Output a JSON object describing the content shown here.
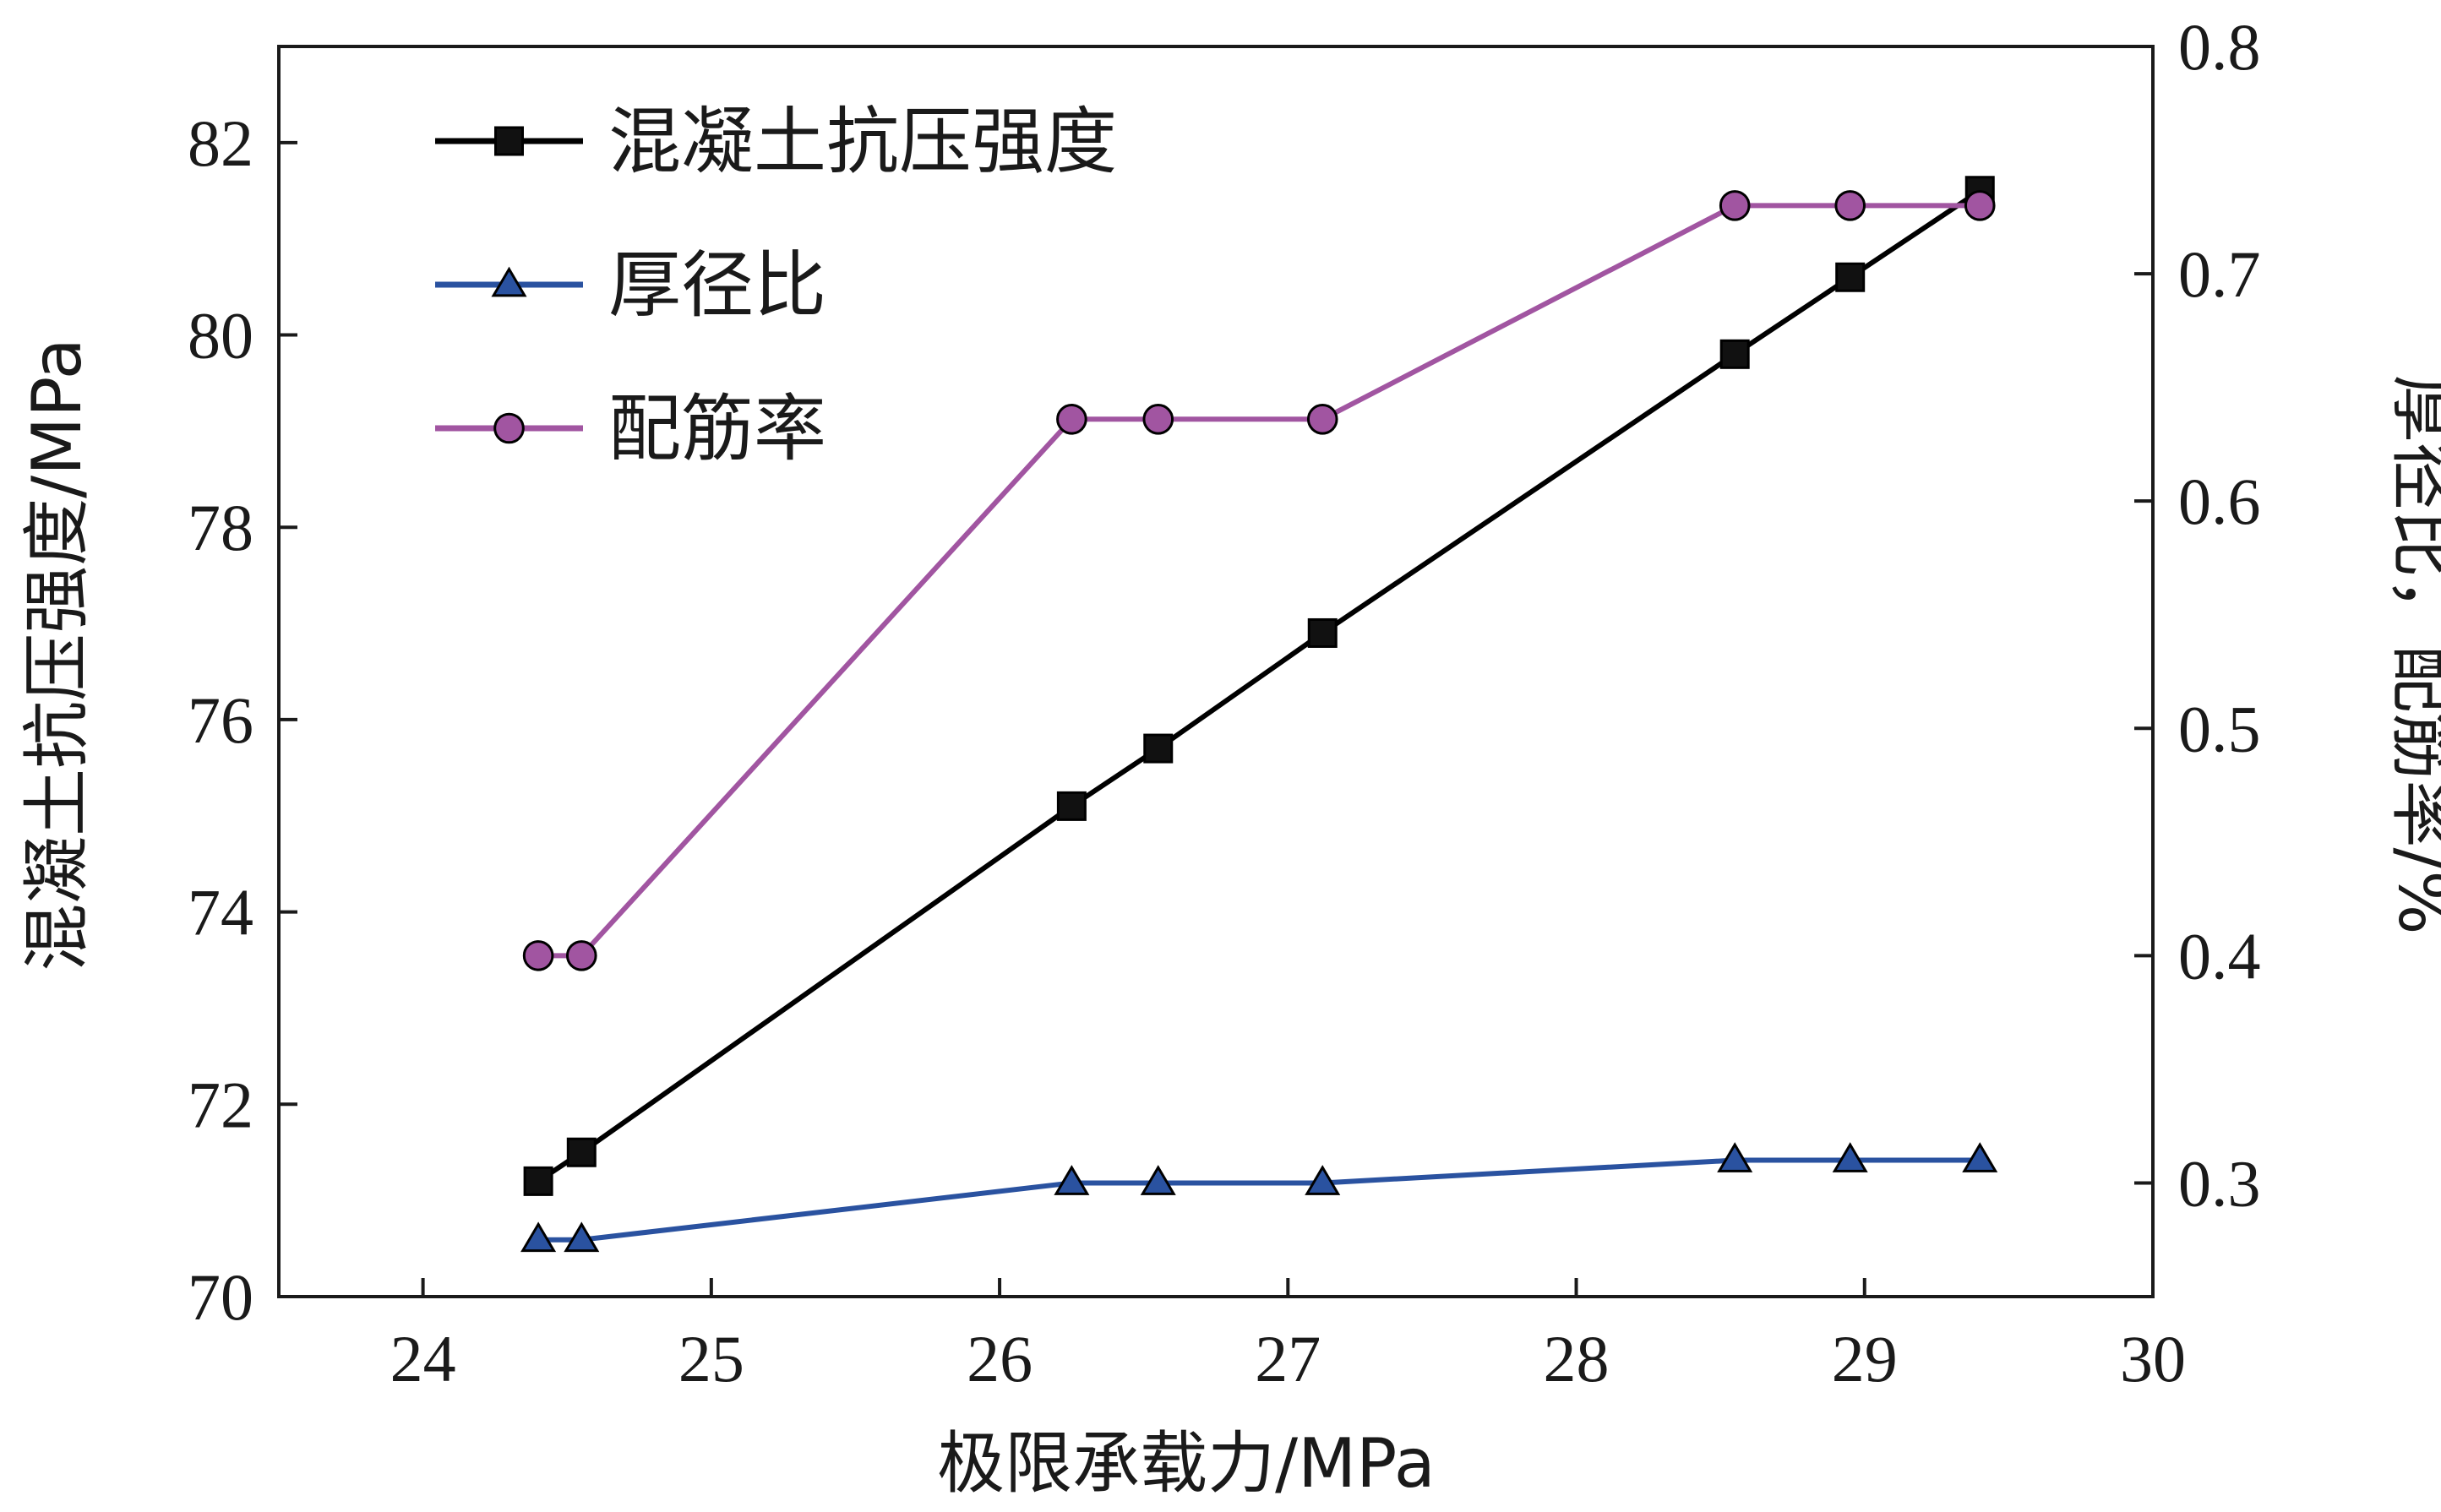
{
  "chart_data": {
    "type": "line",
    "xlabel": "极限承载力/MPa",
    "ylabel": "混凝土抗压强度/MPa",
    "y2label": "厚径比，配筋率/%",
    "xlim": [
      23.5,
      30
    ],
    "ylim": [
      70,
      83
    ],
    "y2lim": [
      0.25,
      0.8
    ],
    "xticks": [
      "24",
      "25",
      "26",
      "27",
      "28",
      "29",
      "30"
    ],
    "yticks": [
      "70",
      "72",
      "74",
      "76",
      "78",
      "80",
      "82"
    ],
    "y2ticks": [
      "0.3",
      "0.4",
      "0.5",
      "0.6",
      "0.7",
      "0.8"
    ],
    "grid": false,
    "legend_position": "top-left",
    "series": [
      {
        "name": "混凝土抗压强度",
        "axis": "left",
        "color": "#000000",
        "marker": "square",
        "x": [
          24.4,
          24.55,
          26.25,
          26.55,
          27.12,
          28.55,
          28.95,
          29.4
        ],
        "y": [
          71.2,
          71.5,
          75.1,
          75.7,
          76.9,
          79.8,
          80.6,
          81.5
        ]
      },
      {
        "name": "厚径比",
        "axis": "right",
        "color": "#2a52a0",
        "marker": "triangle",
        "x": [
          24.4,
          24.55,
          26.25,
          26.55,
          27.12,
          28.55,
          28.95,
          29.4
        ],
        "y": [
          0.275,
          0.275,
          0.3,
          0.3,
          0.3,
          0.31,
          0.31,
          0.31
        ]
      },
      {
        "name": "配筋率",
        "axis": "right",
        "color": "#a155a1",
        "marker": "circle",
        "x": [
          24.4,
          24.55,
          26.25,
          26.55,
          27.12,
          28.55,
          28.95,
          29.4
        ],
        "y": [
          0.4,
          0.4,
          0.636,
          0.636,
          0.636,
          0.73,
          0.73,
          0.73
        ]
      }
    ]
  }
}
